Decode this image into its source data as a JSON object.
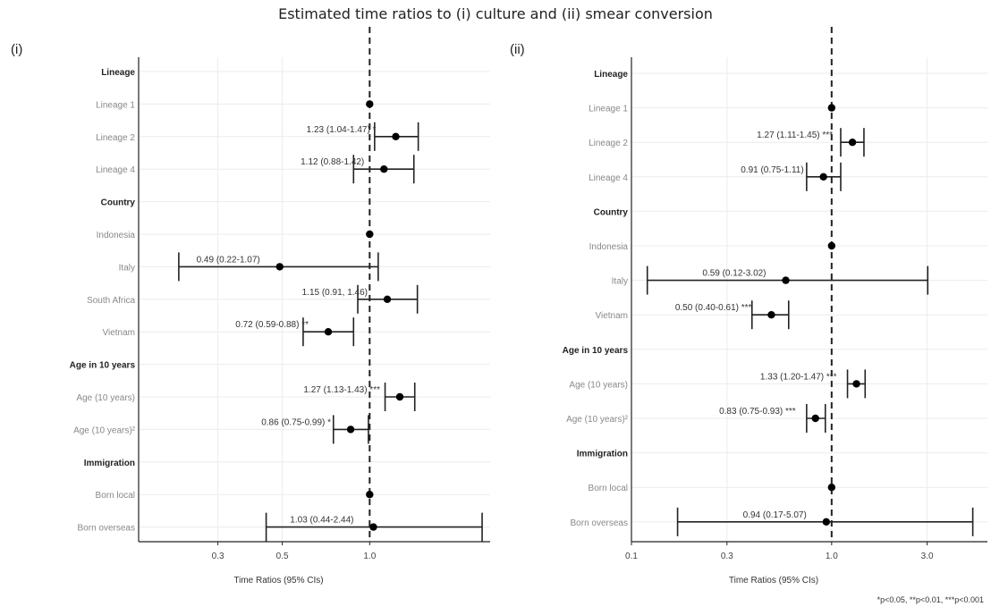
{
  "title": "Estimated time ratios to (i) culture and (ii) smear conversion",
  "footnote": "*p<0.05, **p<0.01, ***p<0.001",
  "chart_data": [
    {
      "type": "forest",
      "panel_label": "(i)",
      "xlabel": "Time Ratios (95% CIs)",
      "x_scale": "log",
      "xlim": [
        0.16,
        2.6
      ],
      "xticks": [
        0.3,
        0.5,
        1.0
      ],
      "xtick_labels": [
        "0.3",
        "0.5",
        "1.0"
      ],
      "reference_line": 1.0,
      "rows": [
        {
          "label": "Lineage",
          "header": true
        },
        {
          "label": "Lineage 1",
          "est": 1.0
        },
        {
          "label": "Lineage 2",
          "est": 1.23,
          "lo": 1.04,
          "hi": 1.47,
          "annot": "1.23 (1.04-1.47) *"
        },
        {
          "label": "Lineage 4",
          "est": 1.12,
          "lo": 0.88,
          "hi": 1.42,
          "annot": "1.12 (0.88-1.42)"
        },
        {
          "label": "Country",
          "header": true
        },
        {
          "label": "Indonesia",
          "est": 1.0
        },
        {
          "label": "Italy",
          "est": 0.49,
          "lo": 0.22,
          "hi": 1.07,
          "annot": "0.49 (0.22-1.07)"
        },
        {
          "label": "South Africa",
          "est": 1.15,
          "lo": 0.91,
          "hi": 1.46,
          "annot": "1.15 (0.91, 1.46)"
        },
        {
          "label": "Vietnam",
          "est": 0.72,
          "lo": 0.59,
          "hi": 0.88,
          "annot": "0.72 (0.59-0.88) **"
        },
        {
          "label": "Age in 10 years",
          "header": true
        },
        {
          "label": "Age (10 years)",
          "est": 1.27,
          "lo": 1.13,
          "hi": 1.43,
          "annot": "1.27 (1.13-1.43) ***"
        },
        {
          "label": "Age (10 years)²",
          "est": 0.86,
          "lo": 0.75,
          "hi": 0.99,
          "annot": "0.86 (0.75-0.99) *"
        },
        {
          "label": "Immigration",
          "header": true
        },
        {
          "label": "Born local",
          "est": 1.0
        },
        {
          "label": "Born overseas",
          "est": 1.03,
          "lo": 0.44,
          "hi": 2.44,
          "annot": "1.03 (0.44-2.44)"
        }
      ]
    },
    {
      "type": "forest",
      "panel_label": "(ii)",
      "xlabel": "Time Ratios (95% CIs)",
      "x_scale": "log",
      "xlim": [
        0.1,
        6.0
      ],
      "xticks": [
        0.1,
        0.3,
        1.0,
        3.0
      ],
      "xtick_labels": [
        "0.1",
        "0.3",
        "1.0",
        "3.0"
      ],
      "reference_line": 1.0,
      "rows": [
        {
          "label": "Lineage",
          "header": true
        },
        {
          "label": "Lineage 1",
          "est": 1.0
        },
        {
          "label": "Lineage 2",
          "est": 1.27,
          "lo": 1.11,
          "hi": 1.45,
          "annot": "1.27 (1.11-1.45) ***"
        },
        {
          "label": "Lineage 4",
          "est": 0.91,
          "lo": 0.75,
          "hi": 1.11,
          "annot": "0.91 (0.75-1.11)"
        },
        {
          "label": "Country",
          "header": true
        },
        {
          "label": "Indonesia",
          "est": 1.0
        },
        {
          "label": "Italy",
          "est": 0.59,
          "lo": 0.12,
          "hi": 3.02,
          "annot": "0.59 (0.12-3.02)"
        },
        {
          "label": "Vietnam",
          "est": 0.5,
          "lo": 0.4,
          "hi": 0.61,
          "annot": "0.50 (0.40-0.61) ***"
        },
        {
          "label": "Age in 10 years",
          "header": true
        },
        {
          "label": "Age (10 years)",
          "est": 1.33,
          "lo": 1.2,
          "hi": 1.47,
          "annot": "1.33 (1.20-1.47) ***"
        },
        {
          "label": "Age (10 years)²",
          "est": 0.83,
          "lo": 0.75,
          "hi": 0.93,
          "annot": "0.83 (0.75-0.93) ***"
        },
        {
          "label": "Immigration",
          "header": true
        },
        {
          "label": "Born local",
          "est": 1.0
        },
        {
          "label": "Born overseas",
          "est": 0.94,
          "lo": 0.17,
          "hi": 5.07,
          "annot": "0.94 (0.17-5.07)"
        }
      ]
    }
  ]
}
